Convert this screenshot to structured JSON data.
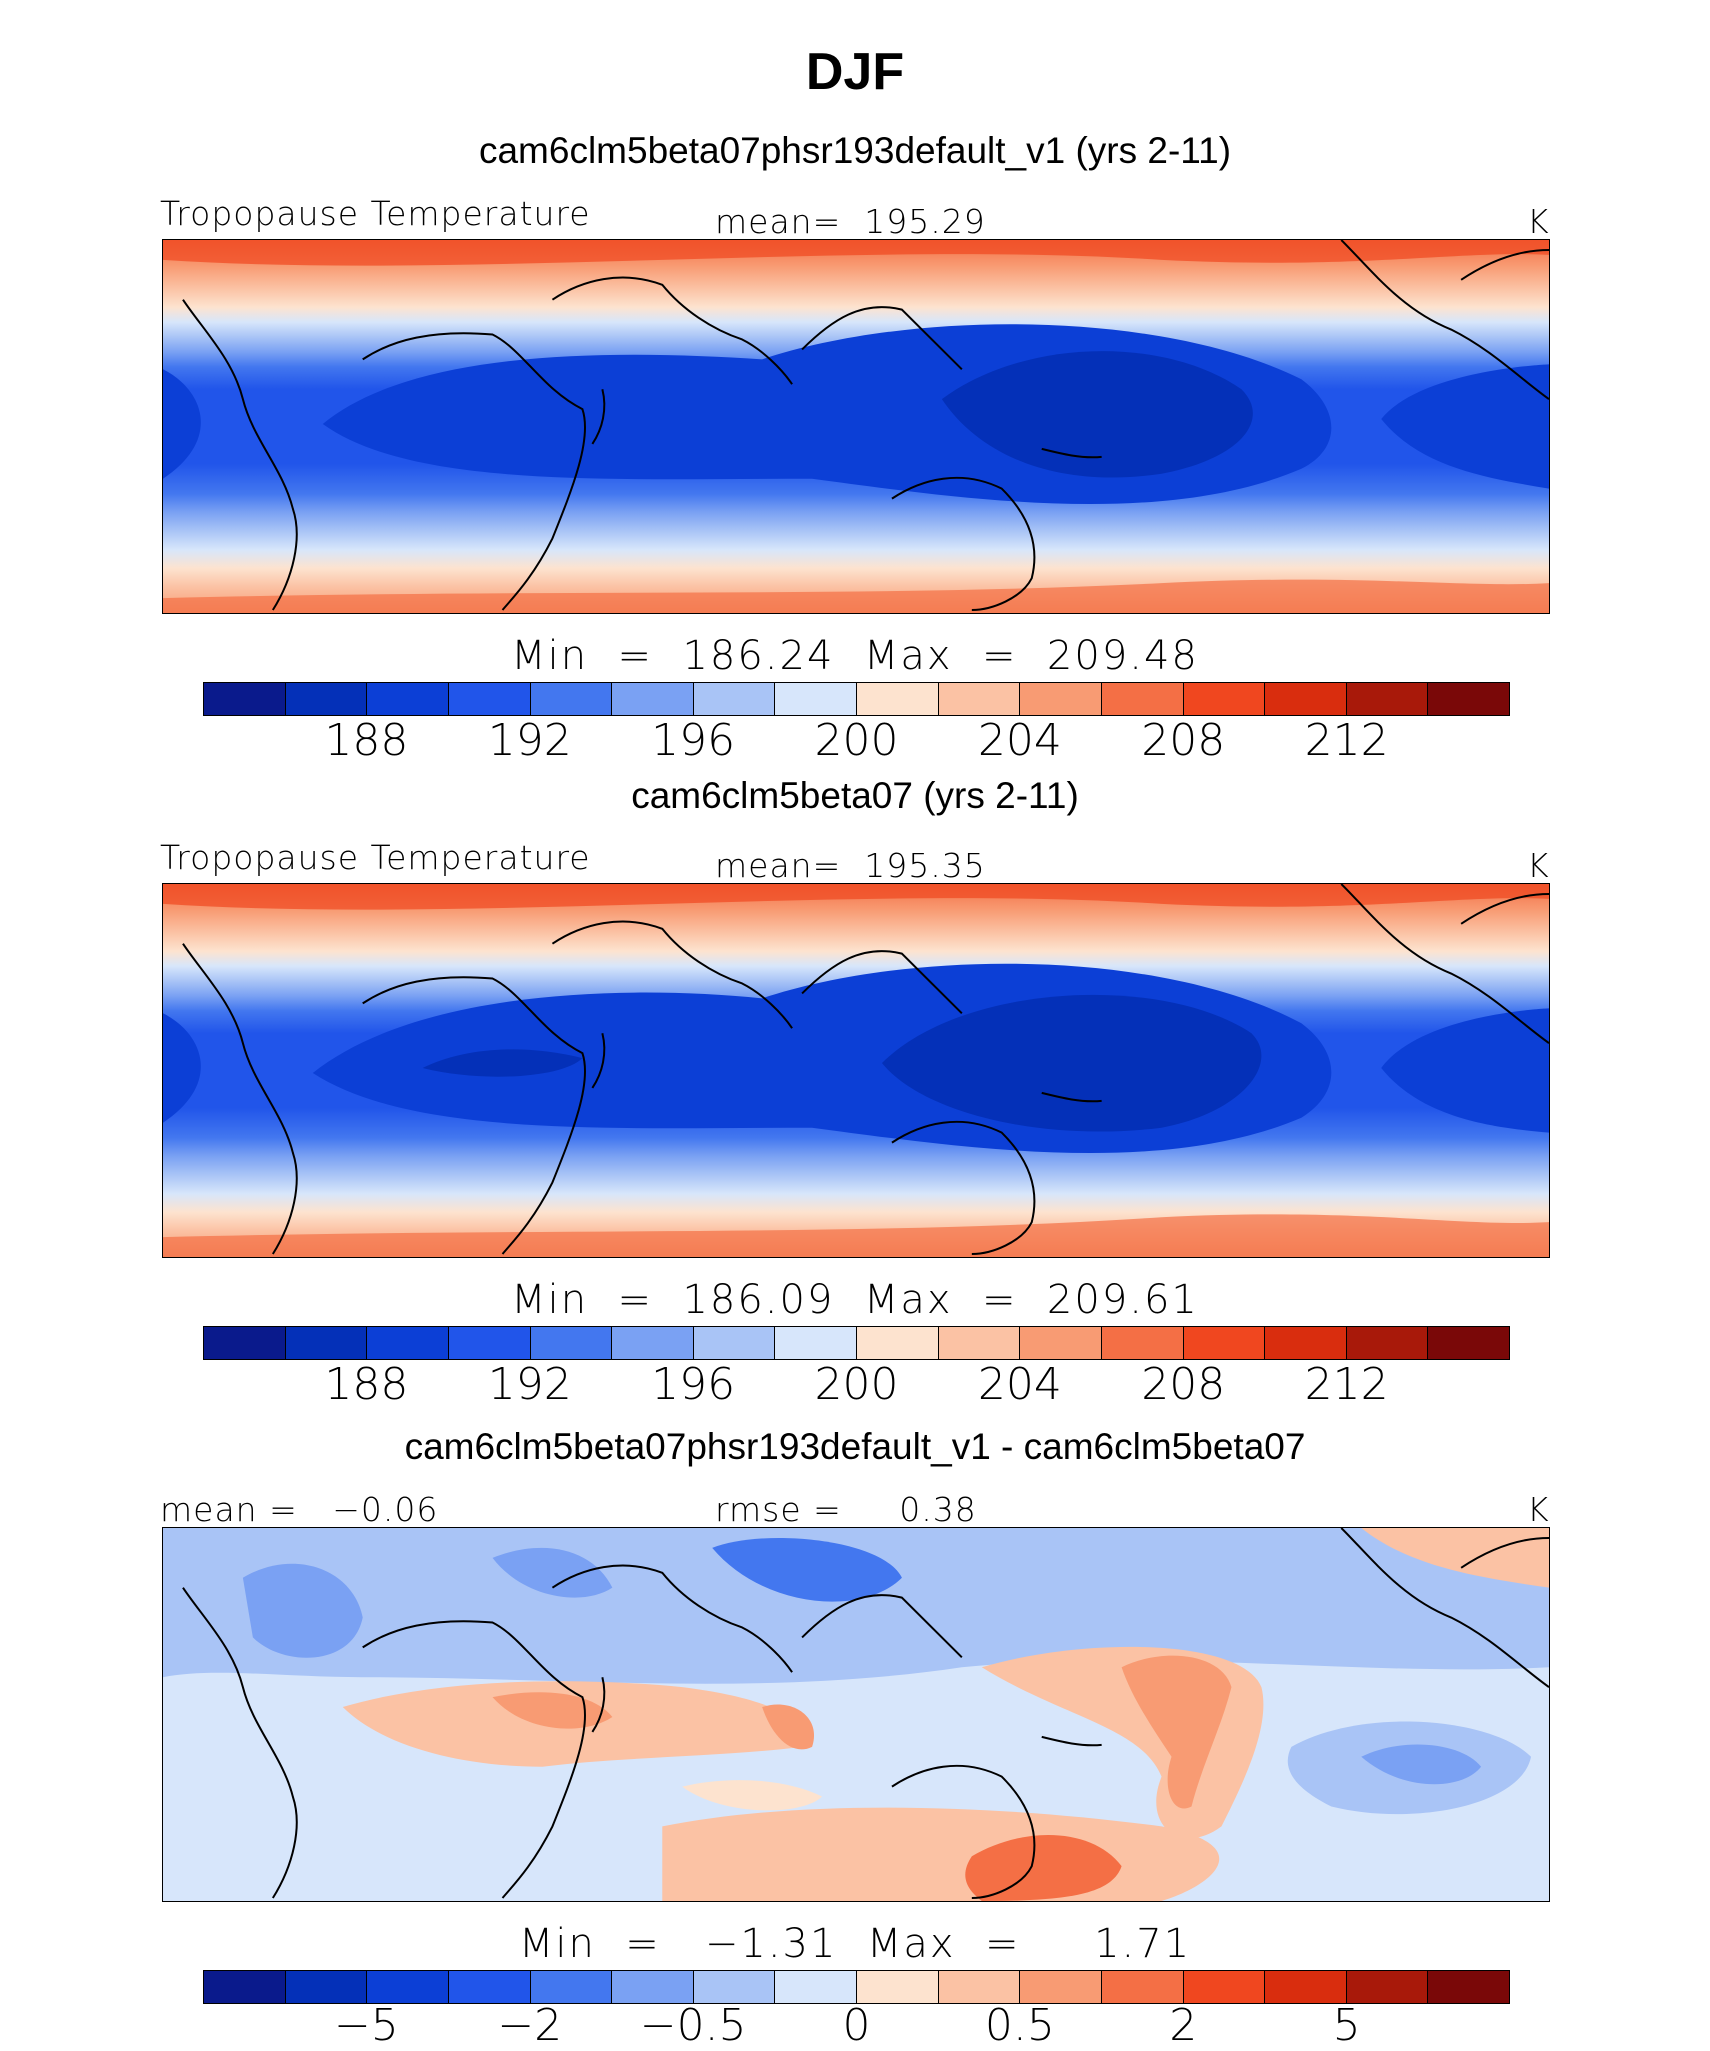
{
  "figure_title": "DJF",
  "units": "K",
  "panels": [
    {
      "title": "cam6clm5beta07phsr193default_v1 (yrs 2-11)",
      "variable": "Tropopause Temperature",
      "mean_text": "mean=  195.29",
      "minmax_text": "Min  =  186.24  Max  =  209.48",
      "colorbar_ticks": [
        "188",
        "192",
        "196",
        "200",
        "204",
        "208",
        "212"
      ]
    },
    {
      "title": "cam6clm5beta07 (yrs 2-11)",
      "variable": "Tropopause Temperature",
      "mean_text": "mean=  195.35",
      "minmax_text": "Min  =  186.09  Max  =  209.61",
      "colorbar_ticks": [
        "188",
        "192",
        "196",
        "200",
        "204",
        "208",
        "212"
      ]
    },
    {
      "title": "cam6clm5beta07phsr193default_v1 - cam6clm5beta07",
      "mean_text": "mean =   −0.06",
      "rmse_text": "rmse =     0.38",
      "minmax_text": "Min  =   −1.31  Max  =     1.71",
      "colorbar_ticks": [
        "−5",
        "−2",
        "−0.5",
        "0",
        "0.5",
        "2",
        "5"
      ]
    }
  ],
  "colorbar_colors": [
    "#0a1a8c",
    "#0430b8",
    "#0c3fd6",
    "#2155ea",
    "#4377ef",
    "#7aa1f3",
    "#a9c4f6",
    "#d7e6fb",
    "#fde3cf",
    "#fbc2a4",
    "#f89b73",
    "#f46f45",
    "#f0471f",
    "#d92d0e",
    "#a8190a",
    "#7a0808"
  ],
  "chart_data": [
    {
      "type": "heatmap",
      "title": "cam6clm5beta07phsr193default_v1 (yrs 2-11)",
      "variable": "Tropopause Temperature",
      "units": "K",
      "mean": 195.29,
      "min": 186.24,
      "max": 209.48,
      "levels": [
        188,
        192,
        196,
        200,
        204,
        208,
        212
      ]
    },
    {
      "type": "heatmap",
      "title": "cam6clm5beta07 (yrs 2-11)",
      "variable": "Tropopause Temperature",
      "units": "K",
      "mean": 195.35,
      "min": 186.09,
      "max": 209.61,
      "levels": [
        188,
        192,
        196,
        200,
        204,
        208,
        212
      ]
    },
    {
      "type": "heatmap",
      "title": "cam6clm5beta07phsr193default_v1 - cam6clm5beta07",
      "units": "K",
      "mean": -0.06,
      "rmse": 0.38,
      "min": -1.31,
      "max": 1.71,
      "levels": [
        -5,
        -2,
        -0.5,
        0,
        0.5,
        2,
        5
      ]
    }
  ]
}
